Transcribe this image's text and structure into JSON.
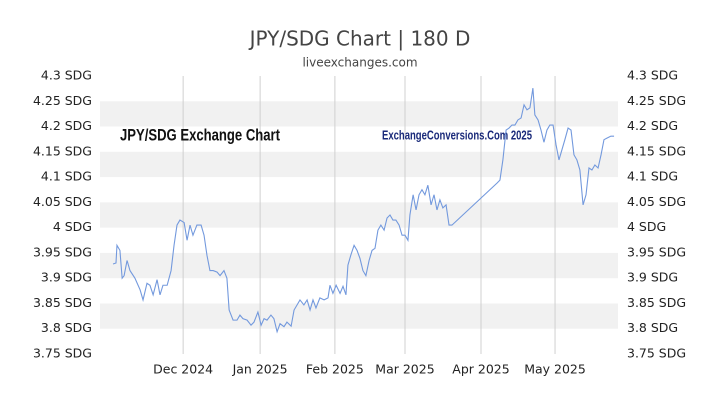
{
  "chart_data": {
    "type": "line",
    "title": "JPY/SDG Chart | 180 D",
    "subtitle": "liveexchanges.com",
    "annotations": [
      "JPY/SDG Exchange Chart",
      "ExchangeConversions.Com 2025"
    ],
    "x": [
      0,
      1.2,
      1.6,
      2.8,
      3.7,
      4.5,
      5.7,
      6.9,
      8.9,
      11,
      12.2,
      13.8,
      15,
      16.3,
      17.9,
      19.1,
      20.3,
      22,
      23.6,
      24.8,
      26,
      27.2,
      28.9,
      30.1,
      31.3,
      32.5,
      34.1,
      35.8,
      37,
      38.2,
      39.4,
      40.7,
      42.3,
      43.5,
      45.1,
      46.3,
      47.2,
      48.8,
      50.4,
      51.6,
      52.8,
      54.5,
      56.1,
      57.3,
      58.9,
      60.2,
      61.4,
      62.6,
      64.2,
      65.4,
      66.7,
      67.9,
      69.5,
      70.7,
      72.4,
      73.6,
      74.8,
      76,
      77.6,
      78.9,
      80.1,
      81.3,
      82.5,
      84.1,
      85.8,
      87.4,
      88.2,
      89.4,
      90.7,
      92.3,
      93.5,
      94.7,
      95.5,
      96.7,
      98,
      99.2,
      100.4,
      101.6,
      102.8,
      104.1,
      105.3,
      106.5,
      107.7,
      108.9,
      110.2,
      111.4,
      112.6,
      113.8,
      115,
      116.3,
      117.5,
      118.7,
      119.9,
      120.7,
      122,
      123.2,
      124.4,
      125.6,
      126.8,
      128,
      129.3,
      130.5,
      131.7,
      132.9,
      134.1,
      135.4,
      136.6,
      137.8,
      156.1,
      157.3,
      158.5,
      159.8,
      161,
      162.2,
      163.4,
      164.6,
      165.9,
      167.1,
      168.3,
      169.5,
      170.7,
      171.5,
      172.8,
      174,
      175.2,
      176.4,
      177.6,
      178.9,
      180.1,
      181.3,
      182.5,
      183.7,
      185,
      186.2,
      187.4,
      188.6,
      189.8,
      191.1,
      192.3,
      193.5,
      194.7,
      195.9,
      197.2,
      198.4,
      199.6,
      200.8,
      202.4,
      203.7
    ],
    "series": [
      {
        "name": "JPY/SDG",
        "color": "#7399dd",
        "values": [
          3.928,
          3.93,
          3.965,
          3.955,
          3.9,
          3.905,
          3.935,
          3.915,
          3.9,
          3.877,
          3.857,
          3.89,
          3.886,
          3.867,
          3.897,
          3.867,
          3.886,
          3.886,
          3.915,
          3.965,
          4.005,
          4.015,
          4.01,
          3.975,
          4.005,
          3.985,
          4.005,
          4.005,
          3.985,
          3.945,
          3.915,
          3.915,
          3.912,
          3.905,
          3.915,
          3.9,
          3.837,
          3.817,
          3.817,
          3.827,
          3.82,
          3.817,
          3.807,
          3.813,
          3.833,
          3.807,
          3.82,
          3.817,
          3.827,
          3.82,
          3.794,
          3.81,
          3.804,
          3.813,
          3.805,
          3.837,
          3.847,
          3.857,
          3.847,
          3.857,
          3.837,
          3.857,
          3.841,
          3.861,
          3.857,
          3.861,
          3.886,
          3.87,
          3.886,
          3.87,
          3.884,
          3.867,
          3.926,
          3.946,
          3.965,
          3.955,
          3.939,
          3.915,
          3.905,
          3.935,
          3.955,
          3.959,
          3.995,
          4.005,
          3.995,
          4.019,
          4.025,
          4.015,
          4.015,
          4.005,
          3.985,
          3.985,
          3.975,
          4.025,
          4.065,
          4.035,
          4.065,
          4.075,
          4.065,
          4.084,
          4.045,
          4.065,
          4.035,
          4.055,
          4.039,
          4.045,
          4.005,
          4.005,
          4.088,
          4.094,
          4.134,
          4.193,
          4.197,
          4.203,
          4.203,
          4.213,
          4.217,
          4.243,
          4.233,
          4.237,
          4.276,
          4.223,
          4.213,
          4.193,
          4.169,
          4.193,
          4.203,
          4.203,
          4.164,
          4.134,
          4.154,
          4.174,
          4.197,
          4.193,
          4.144,
          4.134,
          4.114,
          4.045,
          4.065,
          4.118,
          4.114,
          4.124,
          4.118,
          4.144,
          4.174,
          4.177,
          4.181,
          4.181
        ]
      }
    ],
    "xlim": [
      -5.3,
      205.3
    ],
    "xticks": [
      {
        "value": 28.5,
        "label": "Dec 2024"
      },
      {
        "value": 59.8,
        "label": "Jan 2025"
      },
      {
        "value": 90.2,
        "label": "Feb 2025"
      },
      {
        "value": 118.7,
        "label": "Mar 2025"
      },
      {
        "value": 149.6,
        "label": "Apr 2025"
      },
      {
        "value": 179.7,
        "label": "May 2025"
      }
    ],
    "ylim": [
      3.75,
      4.3
    ],
    "yticks": [
      {
        "value": 3.75,
        "label": "3.75 SDG"
      },
      {
        "value": 3.8,
        "label": "3.8 SDG"
      },
      {
        "value": 3.85,
        "label": "3.85 SDG"
      },
      {
        "value": 3.9,
        "label": "3.9 SDG"
      },
      {
        "value": 3.95,
        "label": "3.95 SDG"
      },
      {
        "value": 4,
        "label": "4 SDG"
      },
      {
        "value": 4.05,
        "label": "4.05 SDG"
      },
      {
        "value": 4.1,
        "label": "4.1 SDG"
      },
      {
        "value": 4.15,
        "label": "4.15 SDG"
      },
      {
        "value": 4.2,
        "label": "4.2 SDG"
      },
      {
        "value": 4.25,
        "label": "4.25 SDG"
      },
      {
        "value": 4.3,
        "label": "4.3 SDG"
      }
    ],
    "grid": true
  }
}
